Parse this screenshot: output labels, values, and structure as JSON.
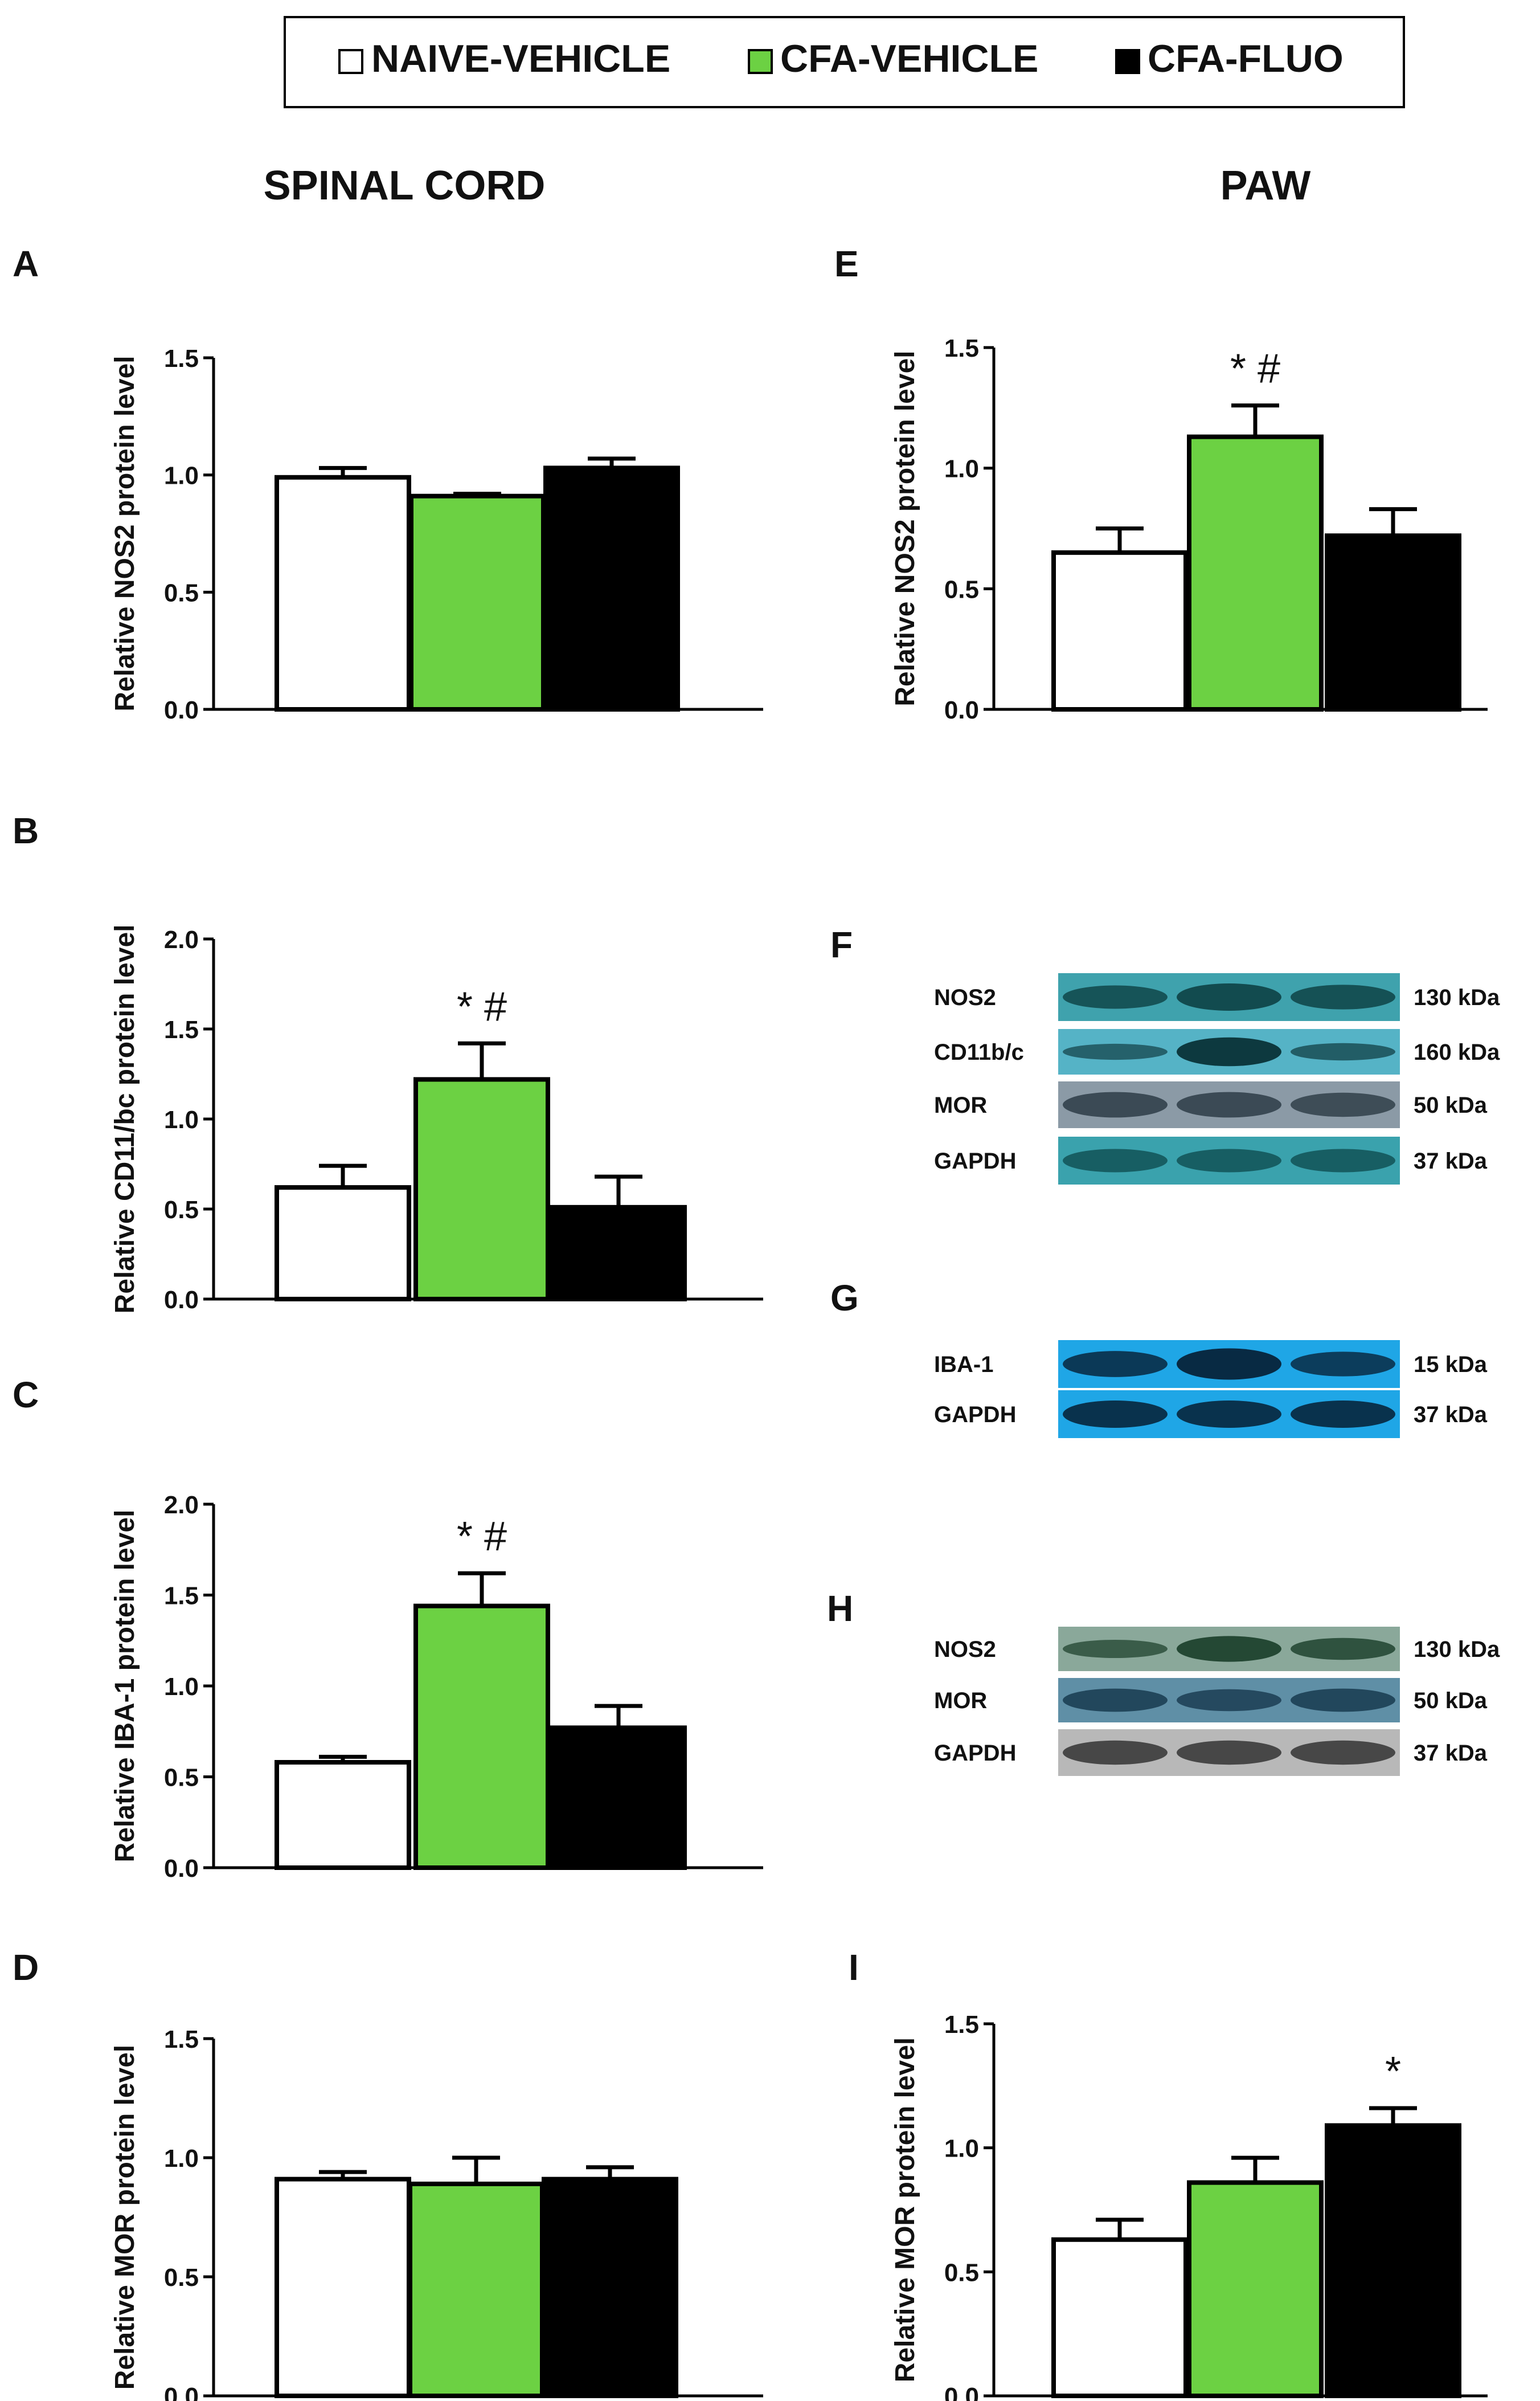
{
  "legend": [
    {
      "label": "NAIVE-VEHICLE",
      "color": "#ffffff"
    },
    {
      "label": "CFA-VEHICLE",
      "color": "#6cd143"
    },
    {
      "label": "CFA-FLUO",
      "color": "#000000"
    }
  ],
  "headers": {
    "left": "SPINAL CORD",
    "right": "PAW"
  },
  "panel_letters": {
    "A": "A",
    "B": "B",
    "C": "C",
    "D": "D",
    "E": "E",
    "F": "F",
    "G": "G",
    "H": "H",
    "I": "I"
  },
  "colors": {
    "bar_colors": [
      "#ffffff",
      "#6cd143",
      "#000000"
    ],
    "axis": "#000000"
  },
  "chart_data": [
    {
      "id": "A",
      "type": "bar",
      "title": "",
      "ylabel": "Relative NOS2 protein level",
      "ylim": [
        0,
        1.5
      ],
      "yticks": [
        "0.0",
        "0.5",
        "1.0",
        "1.5"
      ],
      "tick_values": [
        0,
        0.5,
        1.0,
        1.5
      ],
      "categories": [
        "NAIVE-VEHICLE",
        "CFA-VEHICLE",
        "CFA-FLUO"
      ],
      "values": [
        0.99,
        0.91,
        1.03
      ],
      "errors": [
        0.04,
        0.01,
        0.04
      ],
      "annotations": [
        "",
        "",
        ""
      ]
    },
    {
      "id": "B",
      "type": "bar",
      "title": "",
      "ylabel": "Relative CD11/bc protein level",
      "ylim": [
        0,
        2.0
      ],
      "yticks": [
        "0.0",
        "0.5",
        "1.0",
        "1.5",
        "2.0"
      ],
      "tick_values": [
        0,
        0.5,
        1.0,
        1.5,
        2.0
      ],
      "categories": [
        "NAIVE-VEHICLE",
        "CFA-VEHICLE",
        "CFA-FLUO"
      ],
      "values": [
        0.62,
        1.22,
        0.51
      ],
      "errors": [
        0.12,
        0.2,
        0.17
      ],
      "annotations": [
        "",
        "* #",
        ""
      ]
    },
    {
      "id": "C",
      "type": "bar",
      "title": "",
      "ylabel": "Relative IBA-1 protein level",
      "ylim": [
        0,
        2.0
      ],
      "yticks": [
        "0.0",
        "0.5",
        "1.0",
        "1.5",
        "2.0"
      ],
      "tick_values": [
        0,
        0.5,
        1.0,
        1.5,
        2.0
      ],
      "categories": [
        "NAIVE-VEHICLE",
        "CFA-VEHICLE",
        "CFA-FLUO"
      ],
      "values": [
        0.58,
        1.44,
        0.77
      ],
      "errors": [
        0.03,
        0.18,
        0.12
      ],
      "annotations": [
        "",
        "* #",
        ""
      ]
    },
    {
      "id": "D",
      "type": "bar",
      "title": "",
      "ylabel": "Relative MOR protein level",
      "ylim": [
        0,
        1.5
      ],
      "yticks": [
        "0.0",
        "0.5",
        "1.0",
        "1.5"
      ],
      "tick_values": [
        0,
        0.5,
        1.0,
        1.5
      ],
      "categories": [
        "NAIVE-VEHICLE",
        "CFA-VEHICLE",
        "CFA-FLUO"
      ],
      "values": [
        0.91,
        0.89,
        0.91
      ],
      "errors": [
        0.03,
        0.11,
        0.05
      ],
      "annotations": [
        "",
        "",
        ""
      ]
    },
    {
      "id": "E",
      "type": "bar",
      "title": "",
      "ylabel": "Relative NOS2 protein level",
      "ylim": [
        0,
        1.5
      ],
      "yticks": [
        "0.0",
        "0.5",
        "1.0",
        "1.5"
      ],
      "tick_values": [
        0,
        0.5,
        1.0,
        1.5
      ],
      "categories": [
        "NAIVE-VEHICLE",
        "CFA-VEHICLE",
        "CFA-FLUO"
      ],
      "values": [
        0.65,
        1.13,
        0.72
      ],
      "errors": [
        0.1,
        0.13,
        0.11
      ],
      "annotations": [
        "",
        "* #",
        ""
      ]
    },
    {
      "id": "I",
      "type": "bar",
      "title": "",
      "ylabel": "Relative MOR protein level",
      "ylim": [
        0,
        1.5
      ],
      "yticks": [
        "0.0",
        "0.5",
        "1.0",
        "1.5"
      ],
      "tick_values": [
        0,
        0.5,
        1.0,
        1.5
      ],
      "categories": [
        "NAIVE-VEHICLE",
        "CFA-VEHICLE",
        "CFA-FLUO"
      ],
      "values": [
        0.63,
        0.86,
        1.09
      ],
      "errors": [
        0.08,
        0.1,
        0.07
      ],
      "annotations": [
        "",
        "",
        "*"
      ]
    }
  ],
  "blots": [
    {
      "id": "F",
      "rows": [
        {
          "label": "NOS2",
          "kda": "130 kDa",
          "bg": "#3fa2ad",
          "band": "#0b3d3f",
          "intensity": [
            0.7,
            0.85,
            0.75
          ]
        },
        {
          "label": "CD11b/c",
          "kda": "160 kDa",
          "bg": "#55b3c6",
          "band": "#082f33",
          "intensity": [
            0.45,
            0.95,
            0.5
          ]
        },
        {
          "label": "MOR",
          "kda": "50 kDa",
          "bg": "#8b9aa6",
          "band": "#2b3a44",
          "intensity": [
            0.8,
            0.8,
            0.75
          ]
        },
        {
          "label": "GAPDH",
          "kda": "37 kDa",
          "bg": "#3aa2ad",
          "band": "#0d4a4d",
          "intensity": [
            0.7,
            0.7,
            0.7
          ]
        }
      ]
    },
    {
      "id": "G",
      "rows": [
        {
          "label": "IBA-1",
          "kda": "15 kDa",
          "bg": "#1fa6e6",
          "band": "#07233a",
          "intensity": [
            0.8,
            1.0,
            0.75
          ]
        },
        {
          "label": "GAPDH",
          "kda": "37 kDa",
          "bg": "#1fa6e6",
          "band": "#062033",
          "intensity": [
            0.85,
            0.85,
            0.85
          ]
        }
      ]
    },
    {
      "id": "H",
      "rows": [
        {
          "label": "NOS2",
          "kda": "130 kDa",
          "bg": "#8aa89a",
          "band": "#143823",
          "intensity": [
            0.55,
            0.85,
            0.7
          ]
        },
        {
          "label": "MOR",
          "kda": "50 kDa",
          "bg": "#5f8fa6",
          "band": "#13344a",
          "intensity": [
            0.75,
            0.7,
            0.75
          ]
        },
        {
          "label": "GAPDH",
          "kda": "37 kDa",
          "bg": "#b8b8b8",
          "band": "#2a2a2a",
          "intensity": [
            0.75,
            0.75,
            0.75
          ]
        }
      ]
    }
  ]
}
